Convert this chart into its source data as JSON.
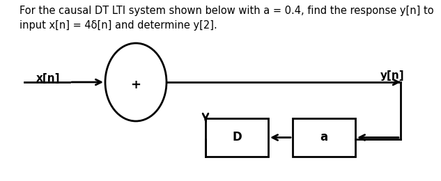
{
  "title_text": "For the causal DT LTI system shown below with a = 0.4, find the response y[n] to\ninput x[n] = 4δ[n] and determine y[2].",
  "title_fontsize": 10.5,
  "background_color": "#ffffff",
  "text_color": "#000000",
  "label_xn": "x[n]",
  "label_yn": "y[n]",
  "label_plus": "+",
  "label_D": "D",
  "label_a": "a",
  "figsize": [
    6.33,
    2.6
  ],
  "dpi": 100
}
